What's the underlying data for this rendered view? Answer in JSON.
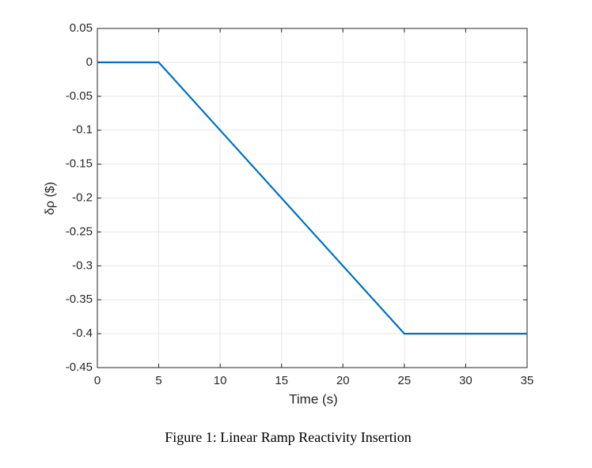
{
  "chart_data": {
    "type": "line",
    "xlabel": "Time (s)",
    "ylabel": "δρ ($)",
    "caption": "Figure 1: Linear Ramp Reactivity Insertion",
    "x": [
      0,
      5,
      25,
      35
    ],
    "series": [
      {
        "color": "#0072bd",
        "values": [
          0,
          0,
          -0.4,
          -0.4
        ]
      }
    ],
    "xlim": [
      0,
      35
    ],
    "xticks": [
      0,
      5,
      10,
      15,
      20,
      25,
      30,
      35
    ],
    "ylim": [
      -0.45,
      0.05
    ],
    "yticks": [
      -0.45,
      -0.4,
      -0.35,
      -0.3,
      -0.25,
      -0.2,
      -0.15,
      -0.1,
      -0.05,
      0,
      0.05
    ],
    "grid": true
  }
}
